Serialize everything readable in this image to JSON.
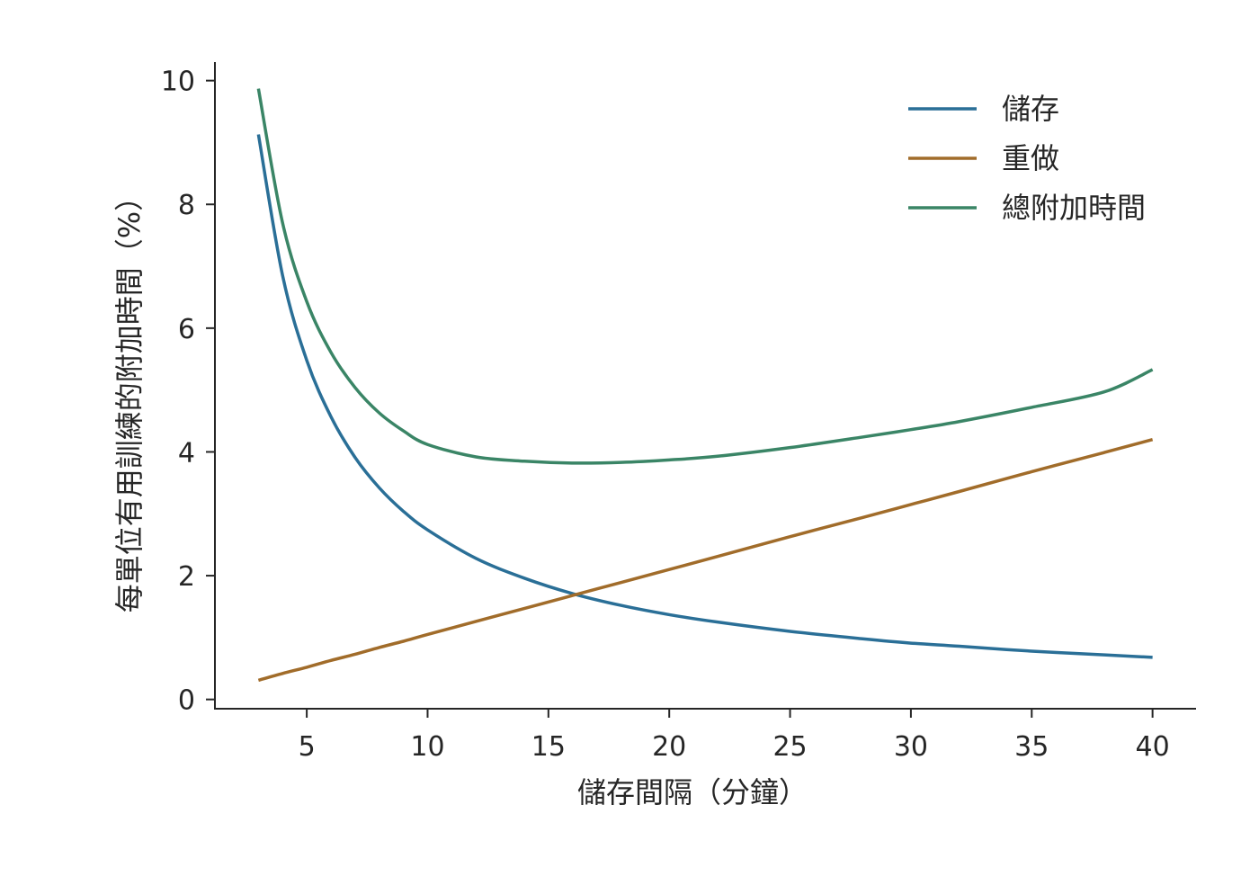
{
  "chart_data": {
    "type": "line",
    "xlabel": "儲存間隔（分鐘）",
    "ylabel": "每單位有用訓練的附加時間（%）",
    "xlim": [
      1.2,
      41.8
    ],
    "ylim": [
      -0.15,
      10.3
    ],
    "xticks": [
      5,
      10,
      15,
      20,
      25,
      30,
      35,
      40
    ],
    "yticks": [
      0,
      2,
      4,
      6,
      8,
      10
    ],
    "grid": false,
    "legend_position": "top-right",
    "x": [
      3,
      4,
      5,
      6,
      7,
      8,
      9,
      10,
      12,
      14,
      16,
      18,
      20,
      22,
      25,
      28,
      30,
      32,
      35,
      38,
      40
    ],
    "series": [
      {
        "name": "儲存",
        "color": "#2a6f97",
        "values": [
          9.13,
          6.85,
          5.48,
          4.57,
          3.91,
          3.42,
          3.04,
          2.74,
          2.28,
          1.96,
          1.71,
          1.52,
          1.37,
          1.25,
          1.1,
          0.98,
          0.91,
          0.86,
          0.78,
          0.72,
          0.68
        ]
      },
      {
        "name": "重做",
        "color": "#a16c2a",
        "values": [
          0.31,
          0.42,
          0.52,
          0.63,
          0.73,
          0.84,
          0.94,
          1.05,
          1.26,
          1.47,
          1.68,
          1.89,
          2.1,
          2.31,
          2.63,
          2.94,
          3.15,
          3.36,
          3.68,
          3.99,
          4.2
        ]
      },
      {
        "name": "總附加時間",
        "color": "#3a8566",
        "values": [
          9.87,
          7.7,
          6.43,
          5.61,
          5.04,
          4.63,
          4.34,
          4.12,
          3.92,
          3.85,
          3.82,
          3.83,
          3.87,
          3.93,
          4.07,
          4.24,
          4.36,
          4.49,
          4.72,
          4.97,
          5.33
        ]
      }
    ]
  }
}
